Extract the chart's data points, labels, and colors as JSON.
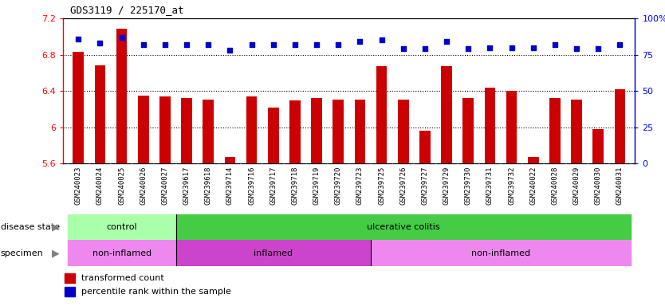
{
  "title": "GDS3119 / 225170_at",
  "samples": [
    "GSM240023",
    "GSM240024",
    "GSM240025",
    "GSM240026",
    "GSM240027",
    "GSM239617",
    "GSM239618",
    "GSM239714",
    "GSM239716",
    "GSM239717",
    "GSM239718",
    "GSM239719",
    "GSM239720",
    "GSM239723",
    "GSM239725",
    "GSM239726",
    "GSM239727",
    "GSM239729",
    "GSM239730",
    "GSM239731",
    "GSM239732",
    "GSM240022",
    "GSM240028",
    "GSM240029",
    "GSM240030",
    "GSM240031"
  ],
  "bar_values": [
    6.83,
    6.68,
    7.09,
    6.35,
    6.34,
    6.32,
    6.31,
    5.67,
    6.34,
    6.22,
    6.3,
    6.32,
    6.31,
    6.31,
    6.67,
    6.31,
    5.96,
    6.67,
    6.32,
    6.44,
    6.4,
    5.67,
    6.32,
    6.31,
    5.98,
    6.42
  ],
  "percentile_values": [
    86,
    83,
    87,
    82,
    82,
    82,
    82,
    78,
    82,
    82,
    82,
    82,
    82,
    84,
    85,
    79,
    79,
    84,
    79,
    80,
    80,
    80,
    82,
    79,
    79,
    82
  ],
  "bar_color": "#cc0000",
  "percentile_color": "#0000cc",
  "ylim_left": [
    5.6,
    7.2
  ],
  "ylim_right": [
    0,
    100
  ],
  "yticks_left": [
    5.6,
    6.0,
    6.4,
    6.8,
    7.2
  ],
  "ytick_labels_left": [
    "5.6",
    "6",
    "6.4",
    "6.8",
    "7.2"
  ],
  "yticks_right": [
    0,
    25,
    50,
    75,
    100
  ],
  "ytick_labels_right": [
    "0",
    "25",
    "50",
    "75",
    "100%"
  ],
  "grid_values": [
    6.0,
    6.4,
    6.8
  ],
  "disease_state_groups": [
    {
      "label": "control",
      "start": 0,
      "end": 5,
      "color": "#aaffaa"
    },
    {
      "label": "ulcerative colitis",
      "start": 5,
      "end": 26,
      "color": "#44cc44"
    }
  ],
  "specimen_groups": [
    {
      "label": "non-inflamed",
      "start": 0,
      "end": 5,
      "color": "#ee88ee"
    },
    {
      "label": "inflamed",
      "start": 5,
      "end": 14,
      "color": "#cc44cc"
    },
    {
      "label": "non-inflamed",
      "start": 14,
      "end": 26,
      "color": "#ee88ee"
    }
  ],
  "legend_items": [
    {
      "color": "#cc0000",
      "label": "transformed count"
    },
    {
      "color": "#0000cc",
      "label": "percentile rank within the sample"
    }
  ],
  "bar_width": 0.5,
  "x_bg_color": "#d4d4d4"
}
